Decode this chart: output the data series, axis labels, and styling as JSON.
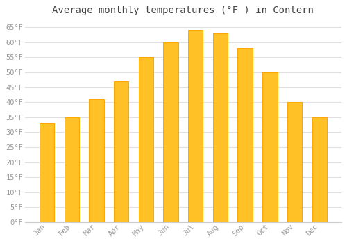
{
  "title": "Average monthly temperatures (°F ) in Contern",
  "months": [
    "Jan",
    "Feb",
    "Mar",
    "Apr",
    "May",
    "Jun",
    "Jul",
    "Aug",
    "Sep",
    "Oct",
    "Nov",
    "Dec"
  ],
  "values": [
    33,
    35,
    41,
    47,
    55,
    60,
    64,
    63,
    58,
    50,
    40,
    35
  ],
  "bar_color": "#FFC125",
  "bar_edge_color": "#FFA500",
  "background_color": "#ffffff",
  "grid_color": "#e0e0e0",
  "ylim": [
    0,
    67
  ],
  "yticks": [
    0,
    5,
    10,
    15,
    20,
    25,
    30,
    35,
    40,
    45,
    50,
    55,
    60,
    65
  ],
  "tick_label_color": "#999999",
  "title_fontsize": 10,
  "tick_fontsize": 7.5,
  "bar_width": 0.6
}
